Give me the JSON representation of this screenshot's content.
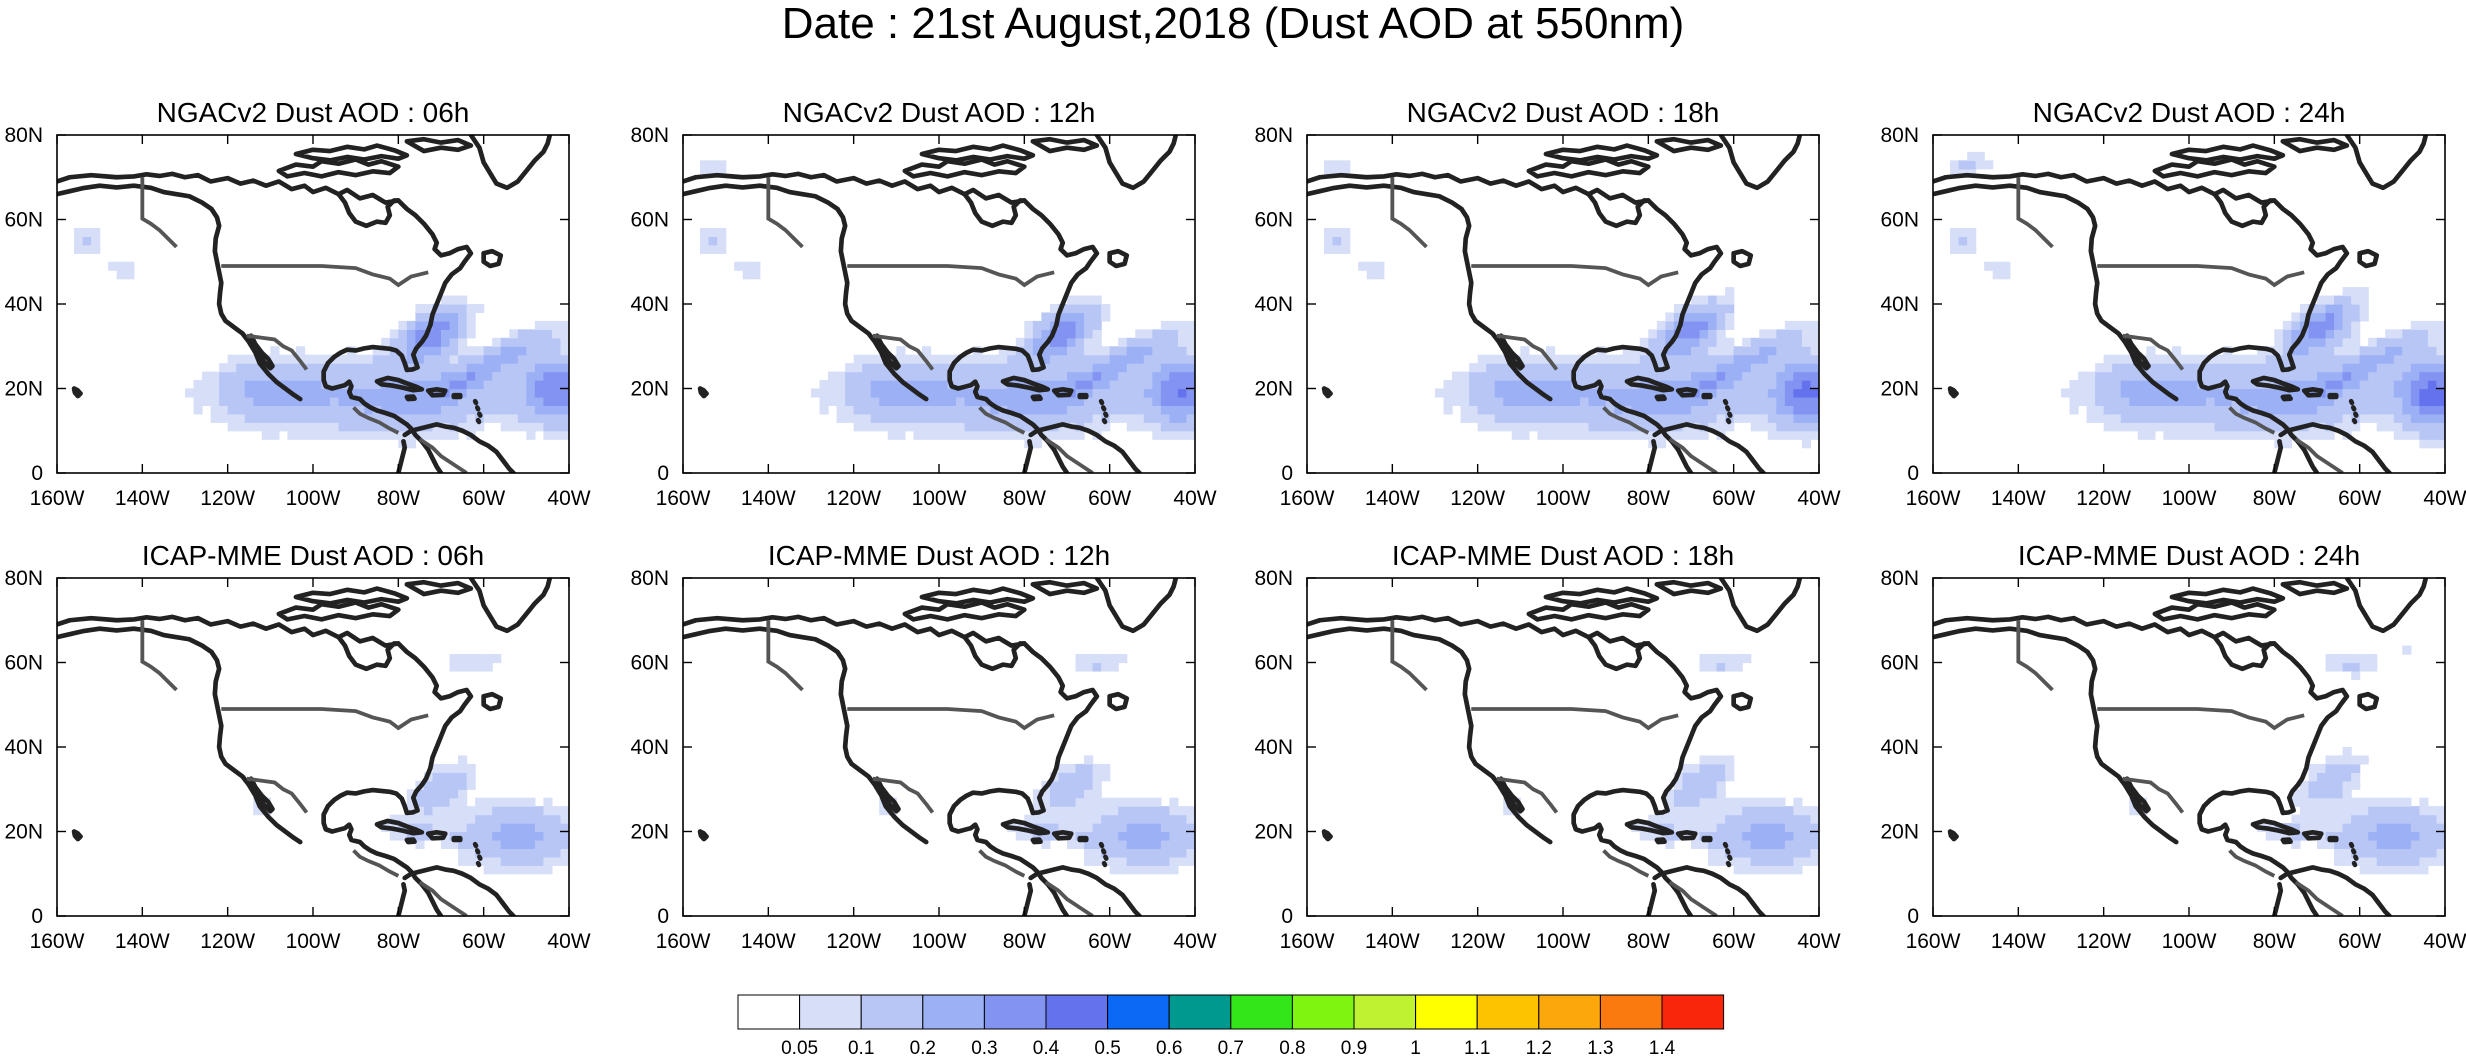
{
  "figure": {
    "title": "Date : 21st August,2018 (Dust AOD at 550nm)"
  },
  "map_axes": {
    "lon_range": [
      -160,
      -40
    ],
    "lat_range": [
      0,
      80
    ],
    "lon_ticks": [
      {
        "value": -160,
        "label": "160W"
      },
      {
        "value": -140,
        "label": "140W"
      },
      {
        "value": -120,
        "label": "120W"
      },
      {
        "value": -100,
        "label": "100W"
      },
      {
        "value": -80,
        "label": "80W"
      },
      {
        "value": -60,
        "label": "60W"
      },
      {
        "value": -40,
        "label": "40W"
      }
    ],
    "lat_ticks": [
      {
        "value": 0,
        "label": "0"
      },
      {
        "value": 20,
        "label": "20N"
      },
      {
        "value": 40,
        "label": "40N"
      },
      {
        "value": 60,
        "label": "60N"
      },
      {
        "value": 80,
        "label": "80N"
      }
    ]
  },
  "panels": [
    {
      "title": "NGACv2 Dust AOD : 06h",
      "model": "NGACv2",
      "hour": 6,
      "row": 0,
      "col": 0
    },
    {
      "title": "NGACv2 Dust AOD : 12h",
      "model": "NGACv2",
      "hour": 12,
      "row": 0,
      "col": 1
    },
    {
      "title": "NGACv2 Dust AOD : 18h",
      "model": "NGACv2",
      "hour": 18,
      "row": 0,
      "col": 2
    },
    {
      "title": "NGACv2 Dust AOD : 24h",
      "model": "NGACv2",
      "hour": 24,
      "row": 0,
      "col": 3
    },
    {
      "title": "ICAP-MME Dust AOD : 06h",
      "model": "ICAP-MME",
      "hour": 6,
      "row": 1,
      "col": 0
    },
    {
      "title": "ICAP-MME Dust AOD : 12h",
      "model": "ICAP-MME",
      "hour": 12,
      "row": 1,
      "col": 1
    },
    {
      "title": "ICAP-MME Dust AOD : 18h",
      "model": "ICAP-MME",
      "hour": 18,
      "row": 1,
      "col": 2
    },
    {
      "title": "ICAP-MME Dust AOD : 24h",
      "model": "ICAP-MME",
      "hour": 24,
      "row": 1,
      "col": 3
    }
  ],
  "colorbar": {
    "labels": [
      "0.05",
      "0.1",
      "0.2",
      "0.3",
      "0.4",
      "0.5",
      "0.6",
      "0.7",
      "0.8",
      "0.9",
      "1",
      "1.1",
      "1.2",
      "1.3",
      "1.4"
    ],
    "colors": [
      "#ffffff",
      "#d6def8",
      "#b8c6f6",
      "#9cb0f5",
      "#8293f2",
      "#6572ee",
      "#0b6af5",
      "#00998f",
      "#33e61a",
      "#7ef510",
      "#bff230",
      "#ffff00",
      "#fdc200",
      "#fca70c",
      "#fb7a10",
      "#fa260a"
    ]
  }
}
